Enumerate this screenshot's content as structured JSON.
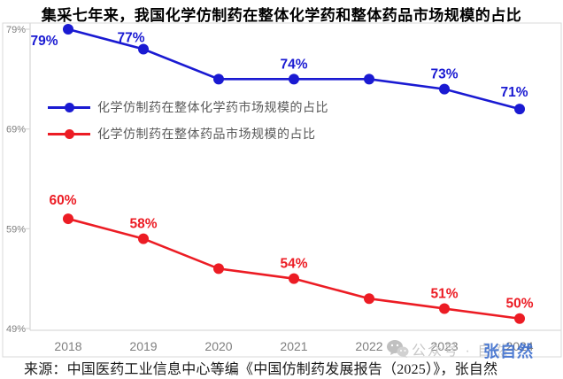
{
  "title": "集采七年来，我国化学仿制药在整体化学药和整体药品市场规模的占比",
  "source": "来源：中国医药工业信息中心等编《中国仿制药发展报告（2025）》，张自然",
  "watermark": {
    "icon": "wechat-icon",
    "text": "公众号 · 自然",
    "stamp": "张自然",
    "stamp_color": "#3468cc",
    "text_color": "#c6c6c6"
  },
  "colors": {
    "series_blue": "#1a1ad2",
    "series_red": "#ec1c24",
    "axis_label": "#7f7f7f",
    "legend_text": "#595959",
    "plot_border": "#d9d9d9",
    "title_text": "#000000"
  },
  "chart_data": {
    "type": "line",
    "categories": [
      "2018",
      "2019",
      "2020",
      "2021",
      "2022",
      "2023",
      "2024"
    ],
    "series": [
      {
        "name": "化学仿制药在整体化学药市场规模的占比",
        "color": "#1a1ad2",
        "values": [
          79,
          77,
          74,
          74,
          74,
          73,
          71
        ],
        "point_labels": [
          "79%",
          "77%",
          null,
          "74%",
          null,
          "73%",
          "71%"
        ]
      },
      {
        "name": "化学仿制药在整体药品市场规模的占比",
        "color": "#ec1c24",
        "values": [
          60,
          58,
          55,
          54,
          52,
          51,
          50
        ],
        "point_labels": [
          "60%",
          "58%",
          null,
          "54%",
          null,
          "51%",
          "50%"
        ]
      }
    ],
    "title": "集采七年来，我国化学仿制药在整体化学药和整体药品市场规模的占比",
    "xlabel": "",
    "ylabel": "",
    "y_ticks": [
      {
        "label": "79%",
        "value": 79
      },
      {
        "label": "69%",
        "value": 69
      },
      {
        "label": "59%",
        "value": 59
      },
      {
        "label": "49%",
        "value": 49
      }
    ],
    "ylim": [
      49,
      79.8
    ],
    "grid": false,
    "legend_position": "inside-upper-left",
    "unit": "percent"
  }
}
